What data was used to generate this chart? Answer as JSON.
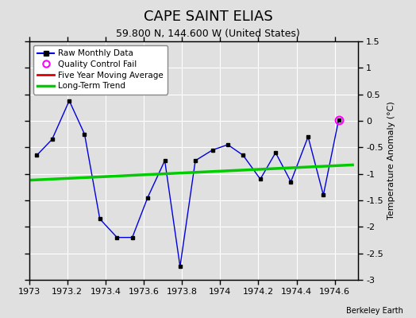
{
  "title": "CAPE SAINT ELIAS",
  "subtitle": "59.800 N, 144.600 W (United States)",
  "ylabel": "Temperature Anomaly (°C)",
  "watermark": "Berkeley Earth",
  "raw_x": [
    1973.04,
    1973.12,
    1973.21,
    1973.29,
    1973.37,
    1973.46,
    1973.54,
    1973.62,
    1973.71,
    1973.79,
    1973.87,
    1973.96,
    1974.04,
    1974.12,
    1974.21,
    1974.29,
    1974.37,
    1974.46,
    1974.54,
    1974.62
  ],
  "raw_y": [
    -0.65,
    -0.35,
    0.38,
    -0.25,
    -1.85,
    -2.2,
    -2.2,
    -1.45,
    -0.75,
    -2.75,
    -0.75,
    -0.55,
    -0.45,
    -0.65,
    -1.1,
    -0.6,
    -1.15,
    -0.3,
    -1.4,
    0.02
  ],
  "qc_fail_x": [
    1974.62
  ],
  "qc_fail_y": [
    0.02
  ],
  "trend_x": [
    1973.0,
    1974.7
  ],
  "trend_y": [
    -1.12,
    -0.83
  ],
  "xlim": [
    1973.0,
    1974.72
  ],
  "ylim": [
    -3.0,
    1.5
  ],
  "xticks": [
    1973.0,
    1973.2,
    1973.4,
    1973.6,
    1973.8,
    1974.0,
    1974.2,
    1974.4,
    1974.6
  ],
  "yticks": [
    -3.0,
    -2.5,
    -2.0,
    -1.5,
    -1.0,
    -0.5,
    0.0,
    0.5,
    1.0,
    1.5
  ],
  "raw_line_color": "#0000dd",
  "raw_dot_color": "#000000",
  "qc_color": "#ff00ff",
  "trend_color": "#00cc00",
  "moving_avg_color": "#dd0000",
  "bg_color": "#e0e0e0",
  "plot_bg_color": "#e0e0e0",
  "grid_color": "#ffffff",
  "title_fontsize": 13,
  "subtitle_fontsize": 9,
  "tick_fontsize": 8,
  "label_fontsize": 8
}
